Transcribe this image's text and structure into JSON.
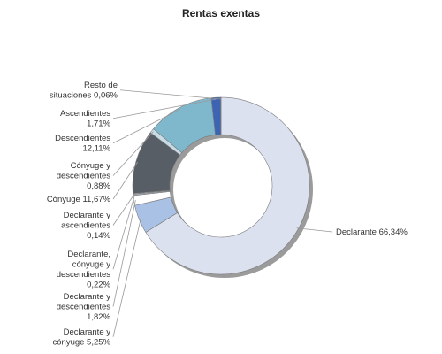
{
  "chart_data": {
    "type": "pie",
    "variant": "donut",
    "title": "Rentas exentas",
    "legend": "none",
    "slices": [
      {
        "name": "Declarante",
        "value": 66.34,
        "label": [
          "Declarante 66,34%"
        ],
        "color": "#dce1f0"
      },
      {
        "name": "Declarante y cónyuge",
        "value": 5.25,
        "label": [
          "Declarante y",
          "cónyuge 5,25%"
        ],
        "color": "#a9c1e4"
      },
      {
        "name": "Declarante y descendientes",
        "value": 1.82,
        "label": [
          "Declarante y",
          "descendientes",
          "1,82%"
        ],
        "color": "#ffffff"
      },
      {
        "name": "Declarante, cónyuge y descendientes",
        "value": 0.22,
        "label": [
          "Declarante,",
          "cónyuge y",
          "descendientes",
          "0,22%"
        ],
        "color": "#b8cad8"
      },
      {
        "name": "Declarante y ascendientes",
        "value": 0.14,
        "label": [
          "Declarante y",
          "ascendientes",
          "0,14%"
        ],
        "color": "#e0e0e0"
      },
      {
        "name": "Cónyuge",
        "value": 11.67,
        "label": [
          "Cónyuge 11,67%"
        ],
        "color": "#585e66"
      },
      {
        "name": "Cónyuge y descendientes",
        "value": 0.88,
        "label": [
          "Cónyuge y",
          "descendientes",
          "0,88%"
        ],
        "color": "#c8dce6"
      },
      {
        "name": "Descendientes",
        "value": 12.11,
        "label": [
          "Descendientes",
          "12,11%"
        ],
        "color": "#7fb8cd"
      },
      {
        "name": "Ascendientes",
        "value": 1.71,
        "label": [
          "Ascendientes",
          "1,71%"
        ],
        "color": "#3d64b2"
      },
      {
        "name": "Resto de situaciones",
        "value": 0.06,
        "label": [
          "Resto de",
          "situaciones 0,06%"
        ],
        "color": "#34467a"
      }
    ]
  }
}
